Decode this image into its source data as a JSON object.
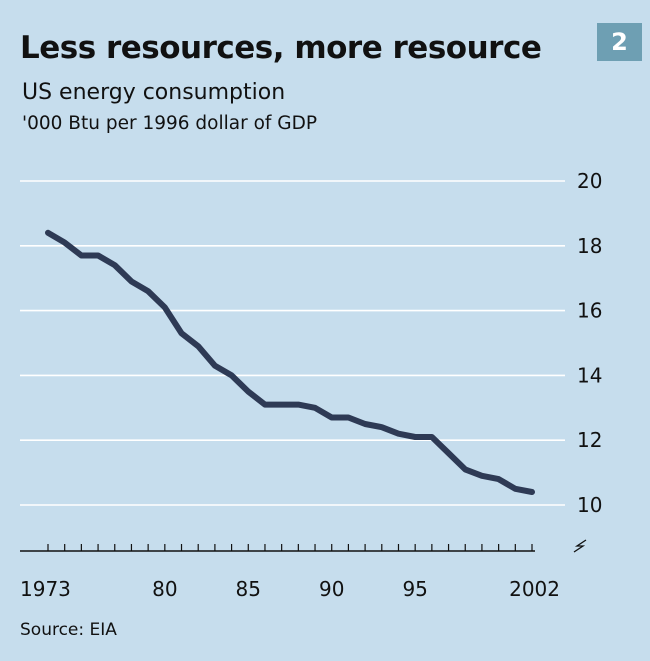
{
  "badge": "2",
  "chart_data": {
    "type": "line",
    "title": "Less resources, more resource",
    "subtitle": "US energy consumption",
    "ylabel": "'000 Btu per 1996 dollar of GDP",
    "xlabel": "",
    "source": "Source: EIA",
    "x_tick_labels": [
      "1973",
      "80",
      "85",
      "90",
      "95",
      "2002"
    ],
    "x_tick_years": [
      1973,
      1980,
      1985,
      1990,
      1995,
      2002
    ],
    "y_ticks": [
      10,
      12,
      14,
      16,
      18,
      20
    ],
    "xlim": [
      1973,
      2002
    ],
    "ylim": [
      10,
      20
    ],
    "grid": true,
    "series": [
      {
        "color": "#2e3a55",
        "x": [
          1973,
          1974,
          1975,
          1976,
          1977,
          1978,
          1979,
          1980,
          1981,
          1982,
          1983,
          1984,
          1985,
          1986,
          1987,
          1988,
          1989,
          1990,
          1991,
          1992,
          1993,
          1994,
          1995,
          1996,
          1997,
          1998,
          1999,
          2000,
          2001,
          2002
        ],
        "y": [
          18.4,
          18.1,
          17.7,
          17.7,
          17.4,
          16.9,
          16.6,
          16.1,
          15.3,
          14.9,
          14.3,
          14.0,
          13.5,
          13.1,
          13.1,
          13.1,
          13.0,
          12.7,
          12.7,
          12.5,
          12.4,
          12.2,
          12.1,
          12.1,
          11.6,
          11.1,
          10.9,
          10.8,
          10.5,
          10.4
        ]
      }
    ],
    "line_color": "#2e3a55",
    "grid_color": "#ffffff",
    "axis_color": "#111111",
    "background": "#c6dded"
  }
}
